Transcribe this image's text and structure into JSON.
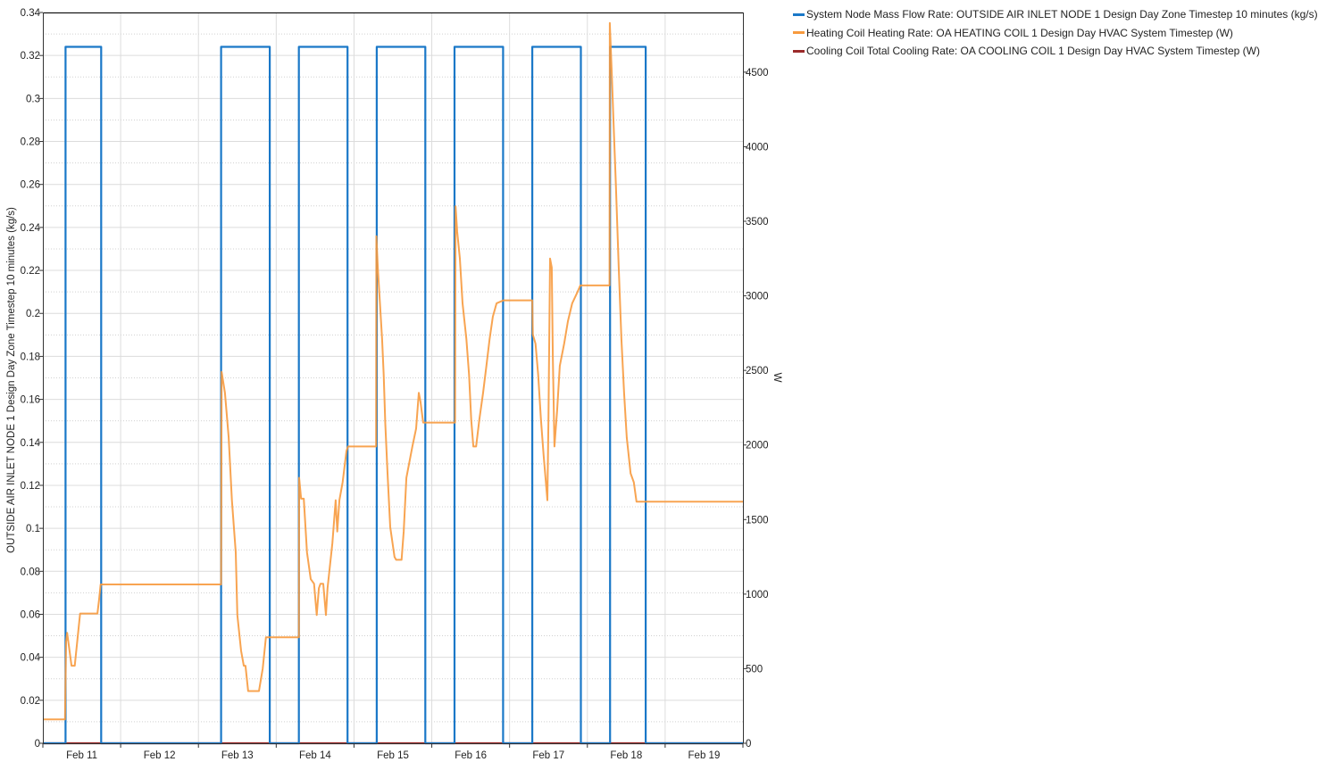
{
  "chart_data": {
    "type": "line",
    "title": "",
    "xlabel": "",
    "ylabel_left": "OUTSIDE AIR INLET NODE 1 Design Day Zone Timestep 10 minutes (kg/s)",
    "ylabel_right": "W",
    "x_range": [
      "Feb 11 00:00",
      "Feb 20 00:00"
    ],
    "x_tick_labels": [
      "Feb 11",
      "Feb 12",
      "Feb 13",
      "Feb 14",
      "Feb 15",
      "Feb 16",
      "Feb 17",
      "Feb 18",
      "Feb 19"
    ],
    "ylim_left": [
      0,
      0.34
    ],
    "y_ticks_left": [
      "0",
      "0.02",
      "0.04",
      "0.06",
      "0.08",
      "0.1",
      "0.12",
      "0.14",
      "0.16",
      "0.18",
      "0.2",
      "0.22",
      "0.24",
      "0.26",
      "0.28",
      "0.3",
      "0.32",
      "0.34"
    ],
    "ylim_right": [
      0,
      4900
    ],
    "y_ticks_right": [
      "0",
      "500",
      "1000",
      "1500",
      "2000",
      "2500",
      "3000",
      "3500",
      "4000",
      "4500"
    ],
    "grid": true,
    "legend_position": "right",
    "series": [
      {
        "name": "System Node Mass Flow Rate: OUTSIDE AIR INLET NODE 1 Design Day Zone Timestep 10 minutes (kg/s)",
        "color": "#1a78c8",
        "axis": "left",
        "step": true,
        "points": [
          [
            "Feb 11 00:00",
            0
          ],
          [
            "Feb 11 07:00",
            0.324
          ],
          [
            "Feb 11 18:00",
            0
          ],
          [
            "Feb 13 07:00",
            0.324
          ],
          [
            "Feb 13 22:00",
            0
          ],
          [
            "Feb 14 07:00",
            0.324
          ],
          [
            "Feb 14 22:00",
            0
          ],
          [
            "Feb 15 07:00",
            0.324
          ],
          [
            "Feb 15 22:00",
            0
          ],
          [
            "Feb 16 07:00",
            0.324
          ],
          [
            "Feb 16 22:00",
            0
          ],
          [
            "Feb 17 07:00",
            0.324
          ],
          [
            "Feb 17 22:00",
            0
          ],
          [
            "Feb 18 07:00",
            0.324
          ],
          [
            "Feb 18 18:00",
            0
          ],
          [
            "Feb 20 00:00",
            0
          ]
        ]
      },
      {
        "name": "Heating Coil Heating Rate: OA HEATING COIL 1 Design Day HVAC System Timestep (W)",
        "color": "#f79a3e",
        "axis": "right",
        "step": false,
        "points": [
          [
            "Feb 11 00:00",
            160
          ],
          [
            "Feb 11 06:50",
            160
          ],
          [
            "Feb 11 07:10",
            680
          ],
          [
            "Feb 11 07:30",
            740
          ],
          [
            "Feb 11 08:50",
            520
          ],
          [
            "Feb 11 09:50",
            520
          ],
          [
            "Feb 11 11:30",
            870
          ],
          [
            "Feb 11 12:10",
            870
          ],
          [
            "Feb 11 16:50",
            870
          ],
          [
            "Feb 11 17:20",
            960
          ],
          [
            "Feb 11 17:50",
            1065
          ],
          [
            "Feb 13 07:00",
            1065
          ],
          [
            "Feb 13 07:10",
            2490
          ],
          [
            "Feb 13 08:10",
            2350
          ],
          [
            "Feb 13 09:20",
            2050
          ],
          [
            "Feb 13 10:20",
            1630
          ],
          [
            "Feb 13 11:30",
            1280
          ],
          [
            "Feb 13 12:00",
            860
          ],
          [
            "Feb 13 13:10",
            620
          ],
          [
            "Feb 13 14:00",
            520
          ],
          [
            "Feb 13 14:30",
            520
          ],
          [
            "Feb 13 15:20",
            350
          ],
          [
            "Feb 13 18:40",
            350
          ],
          [
            "Feb 13 19:50",
            500
          ],
          [
            "Feb 13 20:50",
            710
          ],
          [
            "Feb 14 07:00",
            710
          ],
          [
            "Feb 14 07:05",
            1780
          ],
          [
            "Feb 14 07:40",
            1640
          ],
          [
            "Feb 14 08:30",
            1640
          ],
          [
            "Feb 14 09:30",
            1280
          ],
          [
            "Feb 14 10:40",
            1100
          ],
          [
            "Feb 14 11:40",
            1070
          ],
          [
            "Feb 14 12:30",
            860
          ],
          [
            "Feb 14 13:10",
            1040
          ],
          [
            "Feb 14 13:40",
            1070
          ],
          [
            "Feb 14 14:30",
            1070
          ],
          [
            "Feb 14 15:20",
            860
          ],
          [
            "Feb 14 15:50",
            1040
          ],
          [
            "Feb 14 17:20",
            1340
          ],
          [
            "Feb 14 18:20",
            1630
          ],
          [
            "Feb 14 18:50",
            1420
          ],
          [
            "Feb 14 19:30",
            1630
          ],
          [
            "Feb 14 20:30",
            1750
          ],
          [
            "Feb 14 21:40",
            1960
          ],
          [
            "Feb 14 22:10",
            1990
          ],
          [
            "Feb 15 06:50",
            1990
          ],
          [
            "Feb 15 06:55",
            3400
          ],
          [
            "Feb 15 07:20",
            3190
          ],
          [
            "Feb 15 07:50",
            3010
          ],
          [
            "Feb 15 08:40",
            2710
          ],
          [
            "Feb 15 09:10",
            2470
          ],
          [
            "Feb 15 09:40",
            2140
          ],
          [
            "Feb 15 10:20",
            1810
          ],
          [
            "Feb 15 11:10",
            1450
          ],
          [
            "Feb 15 12:30",
            1250
          ],
          [
            "Feb 15 13:00",
            1230
          ],
          [
            "Feb 15 14:40",
            1230
          ],
          [
            "Feb 15 15:20",
            1420
          ],
          [
            "Feb 15 16:10",
            1780
          ],
          [
            "Feb 15 18:00",
            1990
          ],
          [
            "Feb 15 19:10",
            2110
          ],
          [
            "Feb 15 20:00",
            2350
          ],
          [
            "Feb 15 20:30",
            2290
          ],
          [
            "Feb 15 21:20",
            2150
          ],
          [
            "Feb 16 07:10",
            2150
          ],
          [
            "Feb 16 07:20",
            3600
          ],
          [
            "Feb 16 07:50",
            3430
          ],
          [
            "Feb 16 08:40",
            3250
          ],
          [
            "Feb 16 09:30",
            2950
          ],
          [
            "Feb 16 10:40",
            2710
          ],
          [
            "Feb 16 11:30",
            2470
          ],
          [
            "Feb 16 12:10",
            2170
          ],
          [
            "Feb 16 12:50",
            1990
          ],
          [
            "Feb 16 13:40",
            1990
          ],
          [
            "Feb 16 14:40",
            2170
          ],
          [
            "Feb 16 15:50",
            2350
          ],
          [
            "Feb 16 16:50",
            2530
          ],
          [
            "Feb 16 17:50",
            2710
          ],
          [
            "Feb 16 18:50",
            2860
          ],
          [
            "Feb 16 20:00",
            2950
          ],
          [
            "Feb 16 21:00",
            2960
          ],
          [
            "Feb 16 22:10",
            2970
          ],
          [
            "Feb 17 07:00",
            2970
          ],
          [
            "Feb 17 07:10",
            2740
          ],
          [
            "Feb 17 08:00",
            2680
          ],
          [
            "Feb 17 08:50",
            2470
          ],
          [
            "Feb 17 09:40",
            2170
          ],
          [
            "Feb 17 10:30",
            1930
          ],
          [
            "Feb 17 11:40",
            1630
          ],
          [
            "Feb 17 12:00",
            2170
          ],
          [
            "Feb 17 12:30",
            3250
          ],
          [
            "Feb 17 13:00",
            3190
          ],
          [
            "Feb 17 13:20",
            2590
          ],
          [
            "Feb 17 13:50",
            1990
          ],
          [
            "Feb 17 14:40",
            2230
          ],
          [
            "Feb 17 15:30",
            2530
          ],
          [
            "Feb 17 16:50",
            2680
          ],
          [
            "Feb 17 18:00",
            2830
          ],
          [
            "Feb 17 19:20",
            2950
          ],
          [
            "Feb 17 20:50",
            3020
          ],
          [
            "Feb 17 21:50",
            3070
          ],
          [
            "Feb 18 06:50",
            3070
          ],
          [
            "Feb 18 06:55",
            4830
          ],
          [
            "Feb 18 07:30",
            4510
          ],
          [
            "Feb 18 08:00",
            4210
          ],
          [
            "Feb 18 08:50",
            3730
          ],
          [
            "Feb 18 09:40",
            3190
          ],
          [
            "Feb 18 10:30",
            2710
          ],
          [
            "Feb 18 11:20",
            2350
          ],
          [
            "Feb 18 12:10",
            2050
          ],
          [
            "Feb 18 13:20",
            1810
          ],
          [
            "Feb 18 14:20",
            1750
          ],
          [
            "Feb 18 15:10",
            1620
          ],
          [
            "Feb 20 00:00",
            1620
          ]
        ]
      },
      {
        "name": "Cooling Coil Total Cooling Rate: OA COOLING COIL 1 Design Day HVAC System Timestep (W)",
        "color": "#9b2a2a",
        "axis": "right",
        "step": false,
        "points": [
          [
            "Feb 11 00:00",
            0
          ],
          [
            "Feb 20 00:00",
            0
          ]
        ]
      }
    ]
  }
}
